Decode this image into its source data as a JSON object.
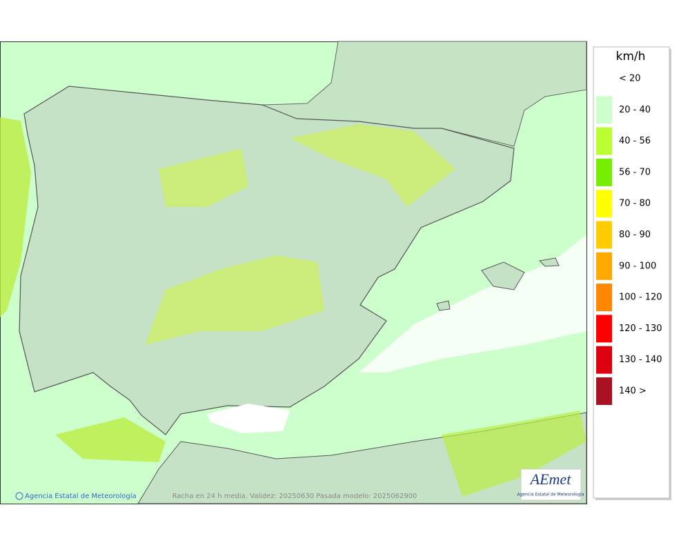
{
  "map": {
    "caption": "Racha en 24 h media. Validez: 20250630 Pasada modelo: 2025062900",
    "credit": "Agencia Estatal de Meteorología",
    "logo": {
      "name": "AEmet",
      "subtitle": "Agencia Estatal de Meteorología"
    }
  },
  "legend": {
    "unit": "km/h",
    "items": [
      {
        "label": "< 20"
      },
      {
        "label": "20 - 40",
        "color": "#ccffcc"
      },
      {
        "label": "40 - 56",
        "color": "#bbff33"
      },
      {
        "label": "56 - 70",
        "color": "#77ee00"
      },
      {
        "label": "70 - 80",
        "color": "#ffff00"
      },
      {
        "label": "80 - 90",
        "color": "#ffcc00"
      },
      {
        "label": "90 - 100",
        "color": "#ffaa00"
      },
      {
        "label": "100 - 120",
        "color": "#ff8800"
      },
      {
        "label": "120 - 130",
        "color": "#ff0000"
      },
      {
        "label": "130 - 140",
        "color": "#dd0011"
      },
      {
        "label": "140 >",
        "color": "#aa1122"
      }
    ]
  }
}
